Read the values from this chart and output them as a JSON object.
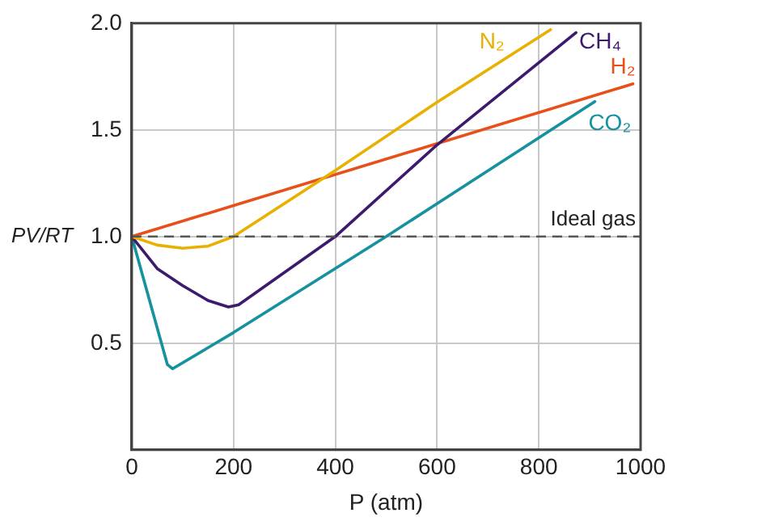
{
  "chart_data": {
    "type": "line",
    "xlabel": "P (atm)",
    "ylabel": "PV/RT",
    "xlim": [
      0,
      1000
    ],
    "xticks": [
      0,
      200,
      400,
      600,
      800,
      1000
    ],
    "ylim": [
      0,
      2
    ],
    "yticks": [
      {
        "value": 0.5,
        "label": "0.5"
      },
      {
        "value": 1,
        "label": "1.0"
      },
      {
        "value": 1.5,
        "label": "1.5"
      },
      {
        "value": 2,
        "label": "2.0"
      }
    ],
    "grid": true,
    "legend": false,
    "marker": "none",
    "line_style": "solid",
    "ref_lines": [
      {
        "axis": "y",
        "value": 1,
        "label": "Ideal gas",
        "color": "#555555",
        "line_style": "dashed"
      }
    ],
    "series": [
      {
        "name": "N₂",
        "color": "#e8b000",
        "x": [
          0,
          50,
          100,
          150,
          200,
          400,
          600,
          823
        ],
        "values": [
          1.0,
          0.96,
          0.945,
          0.955,
          1.0,
          1.31,
          1.63,
          1.97
        ]
      },
      {
        "name": "CH₄",
        "color": "#3d1a6e",
        "x": [
          0,
          50,
          100,
          150,
          190,
          210,
          400,
          600,
          873
        ],
        "values": [
          1.0,
          0.85,
          0.77,
          0.7,
          0.67,
          0.68,
          1.0,
          1.43,
          1.956
        ]
      },
      {
        "name": "H₂",
        "color": "#e8501a",
        "x": [
          0,
          985
        ],
        "values": [
          1.0,
          1.716
        ]
      },
      {
        "name": "CO₂",
        "color": "#16919e",
        "x": [
          0,
          70,
          80,
          200,
          500,
          910
        ],
        "values": [
          1.0,
          0.4,
          0.38,
          0.55,
          1.0,
          1.633
        ]
      }
    ]
  }
}
